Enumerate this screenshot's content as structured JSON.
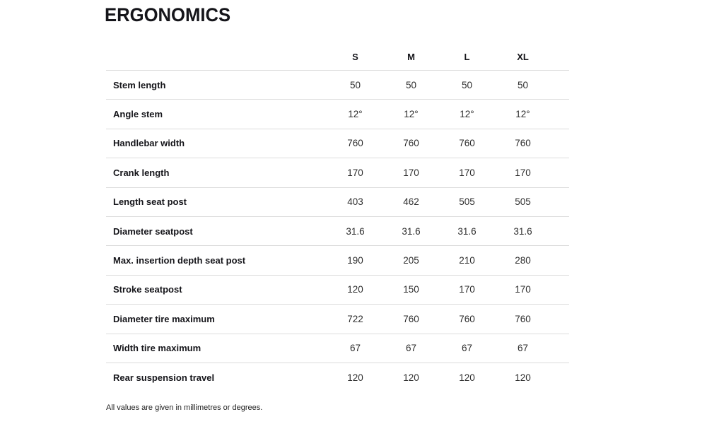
{
  "page": {
    "title": "ERGONOMICS",
    "footnote": "All values are given in millimetres or degrees."
  },
  "table": {
    "columns": [
      "S",
      "M",
      "L",
      "XL"
    ],
    "rows": [
      {
        "label": "Stem length",
        "values": [
          "50",
          "50",
          "50",
          "50"
        ]
      },
      {
        "label": "Angle stem",
        "values": [
          "12°",
          "12°",
          "12°",
          "12°"
        ]
      },
      {
        "label": "Handlebar width",
        "values": [
          "760",
          "760",
          "760",
          "760"
        ]
      },
      {
        "label": "Crank length",
        "values": [
          "170",
          "170",
          "170",
          "170"
        ]
      },
      {
        "label": "Length seat post",
        "values": [
          "403",
          "462",
          "505",
          "505"
        ]
      },
      {
        "label": "Diameter seatpost",
        "values": [
          "31.6",
          "31.6",
          "31.6",
          "31.6"
        ]
      },
      {
        "label": "Max. insertion depth seat post",
        "values": [
          "190",
          "205",
          "210",
          "280"
        ]
      },
      {
        "label": "Stroke seatpost",
        "values": [
          "120",
          "150",
          "170",
          "170"
        ]
      },
      {
        "label": "Diameter tire maximum",
        "values": [
          "722",
          "760",
          "760",
          "760"
        ]
      },
      {
        "label": "Width tire maximum",
        "values": [
          "67",
          "67",
          "67",
          "67"
        ]
      },
      {
        "label": "Rear suspension travel",
        "values": [
          "120",
          "120",
          "120",
          "120"
        ]
      }
    ]
  },
  "colors": {
    "background": "#ffffff",
    "heading_text": "#15151a",
    "label_text": "#15151a",
    "value_text": "#2d2d2d",
    "divider": "#dcdcdc"
  }
}
